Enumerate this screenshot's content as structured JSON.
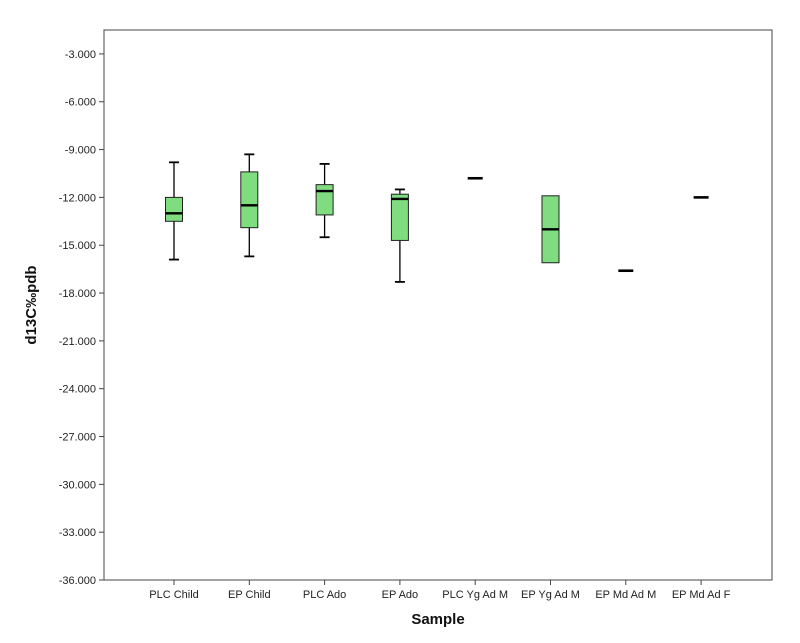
{
  "chart_data": {
    "type": "boxplot",
    "title": "",
    "xlabel": "Sample",
    "ylabel": "d13C‰pdb",
    "ylim": [
      -36.0,
      -1.5
    ],
    "y_ticks": [
      -3.0,
      -6.0,
      -9.0,
      -12.0,
      -15.0,
      -18.0,
      -21.0,
      -24.0,
      -27.0,
      -30.0,
      -33.0,
      -36.0
    ],
    "y_tick_labels": [
      "-3.000",
      "-6.000",
      "-9.000",
      "-12.000",
      "-15.000",
      "-18.000",
      "-21.000",
      "-24.000",
      "-27.000",
      "-30.000",
      "-33.000",
      "-36.000"
    ],
    "grid": false,
    "legend": "none",
    "box_color": "#7fdc7f",
    "categories": [
      "PLC Child",
      "EP Child",
      "PLC Ado",
      "EP Ado",
      "PLC Yg Ad M",
      "EP Yg Ad M",
      "EP Md Ad M",
      "EP Md Ad F"
    ],
    "boxes": [
      {
        "min": -15.9,
        "q1": -13.5,
        "median": -13.0,
        "q3": -12.0,
        "max": -9.8
      },
      {
        "min": -15.7,
        "q1": -13.9,
        "median": -12.5,
        "q3": -10.4,
        "max": -9.3
      },
      {
        "min": -14.5,
        "q1": -13.1,
        "median": -11.6,
        "q3": -11.2,
        "max": -9.9
      },
      {
        "min": -17.3,
        "q1": -14.7,
        "median": -12.1,
        "q3": -11.8,
        "max": -11.5
      },
      {
        "min": -10.8,
        "q1": -10.8,
        "median": -10.8,
        "q3": -10.8,
        "max": -10.8
      },
      {
        "min": -16.1,
        "q1": -16.1,
        "median": -14.0,
        "q3": -11.9,
        "max": -11.9
      },
      {
        "min": -16.6,
        "q1": -16.6,
        "median": -16.6,
        "q3": -16.6,
        "max": -16.6
      },
      {
        "min": -12.0,
        "q1": -12.0,
        "median": -12.0,
        "q3": -12.0,
        "max": -12.0
      }
    ]
  }
}
